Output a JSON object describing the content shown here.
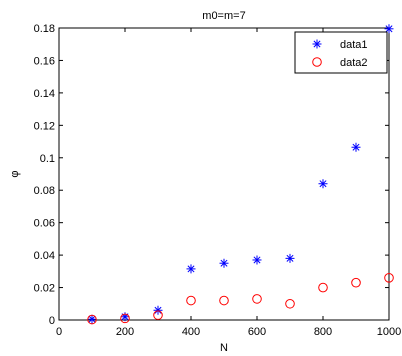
{
  "chart_data": {
    "type": "scatter",
    "title": "m0=m=7",
    "xlabel": "N",
    "ylabel": "φ",
    "xlim": [
      0,
      1000
    ],
    "ylim": [
      0,
      0.18
    ],
    "xticks": [
      0,
      200,
      400,
      600,
      800,
      1000
    ],
    "yticks": [
      0,
      0.02,
      0.04,
      0.06,
      0.08,
      0.1,
      0.12,
      0.14,
      0.16,
      0.18
    ],
    "grid": false,
    "legend_position": "top-right",
    "series": [
      {
        "name": "data1",
        "marker": "asterisk",
        "color": "#0000ff",
        "x": [
          100,
          200,
          300,
          400,
          500,
          600,
          700,
          800,
          900,
          1000
        ],
        "y": [
          0.0005,
          0.002,
          0.006,
          0.0315,
          0.035,
          0.037,
          0.038,
          0.084,
          0.1065,
          0.1795
        ]
      },
      {
        "name": "data2",
        "marker": "circle",
        "color": "#ff0000",
        "x": [
          100,
          200,
          300,
          400,
          500,
          600,
          700,
          800,
          900,
          1000
        ],
        "y": [
          0.0003,
          0.001,
          0.003,
          0.012,
          0.012,
          0.013,
          0.01,
          0.02,
          0.023,
          0.026
        ]
      }
    ]
  }
}
